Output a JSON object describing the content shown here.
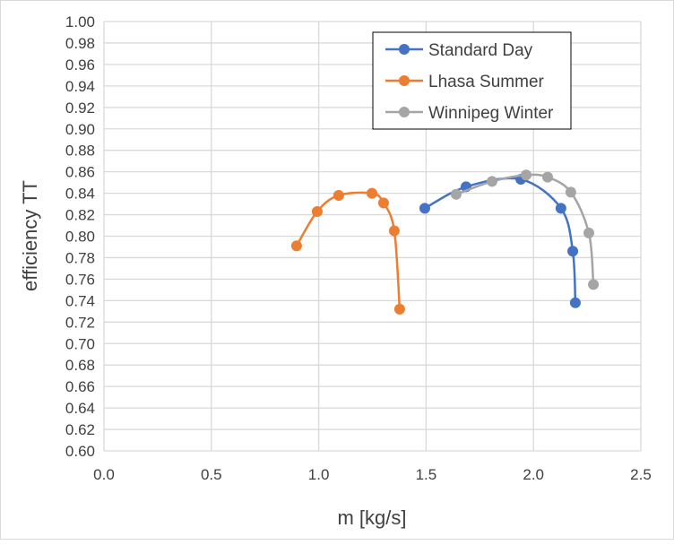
{
  "chart_data": {
    "type": "line",
    "xlabel": "m [kg/s]",
    "ylabel": "efficiency TT",
    "xlim": [
      0,
      2.5
    ],
    "ylim": [
      0.6,
      1.0
    ],
    "xticks": [
      "0.0",
      "0.5",
      "1.0",
      "1.5",
      "2.0",
      "2.5"
    ],
    "yticks": [
      "0.60",
      "0.62",
      "0.64",
      "0.66",
      "0.68",
      "0.70",
      "0.72",
      "0.74",
      "0.76",
      "0.78",
      "0.80",
      "0.82",
      "0.84",
      "0.86",
      "0.88",
      "0.90",
      "0.92",
      "0.94",
      "0.96",
      "0.98",
      "1.00"
    ],
    "grid": true,
    "legend_position": "top-right",
    "smoothed": true,
    "series": [
      {
        "name": "Standard Day",
        "color": "#4472C4",
        "x": [
          1.494,
          1.686,
          1.941,
          2.128,
          2.183,
          2.195
        ],
        "y": [
          0.826,
          0.846,
          0.853,
          0.826,
          0.786,
          0.738
        ]
      },
      {
        "name": "Lhasa Summer",
        "color": "#ED7D31",
        "x": [
          0.897,
          0.993,
          1.093,
          1.248,
          1.302,
          1.352,
          1.377
        ],
        "y": [
          0.791,
          0.823,
          0.838,
          0.84,
          0.831,
          0.805,
          0.732
        ]
      },
      {
        "name": "Winnipeg Winter",
        "color": "#A5A5A5",
        "x": [
          1.64,
          1.807,
          1.966,
          2.066,
          2.174,
          2.258,
          2.279
        ],
        "y": [
          0.839,
          0.851,
          0.857,
          0.855,
          0.841,
          0.803,
          0.755
        ]
      }
    ]
  }
}
